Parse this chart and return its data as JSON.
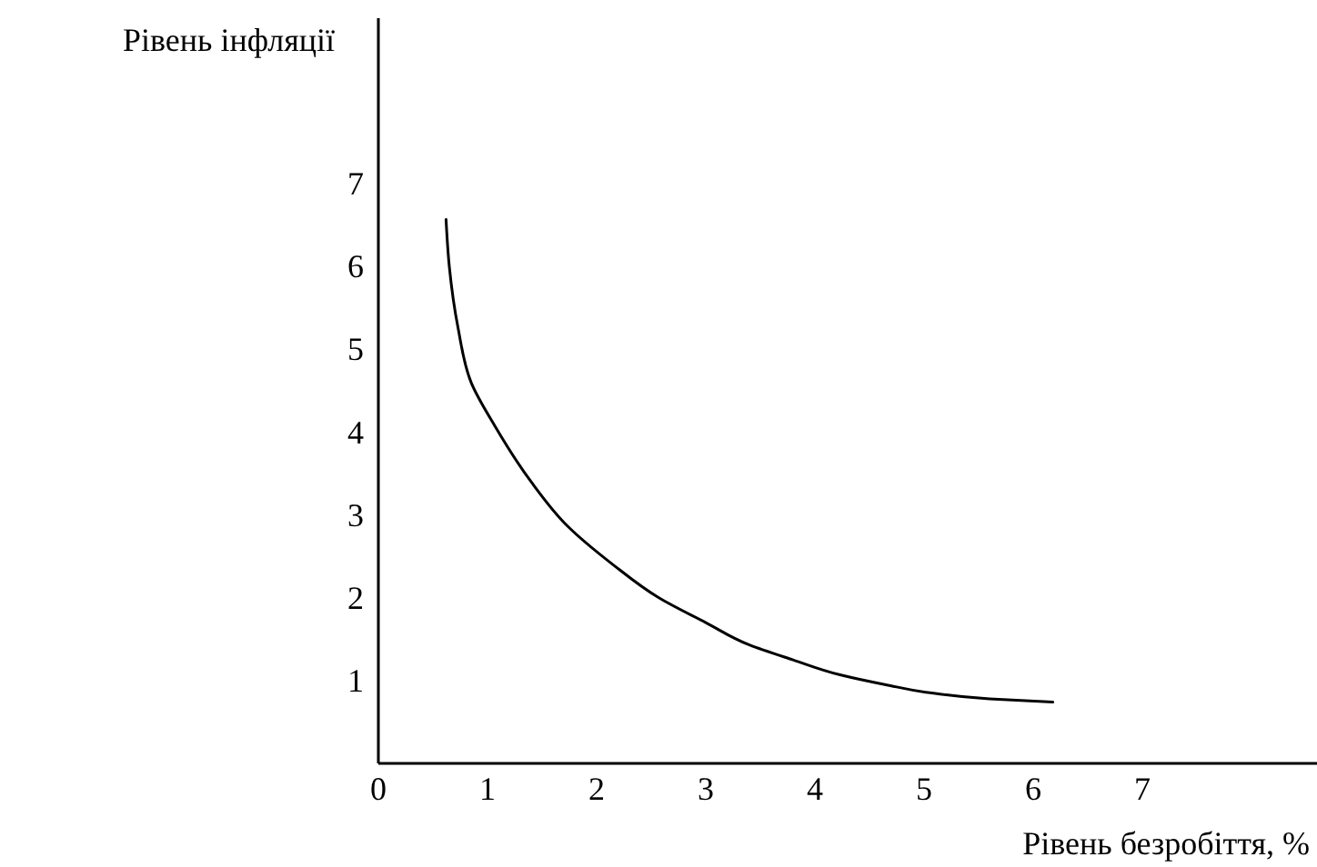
{
  "chart_data": {
    "type": "line",
    "xlabel": "Рівень безробіття, %",
    "ylabel": "Рівень інфляції",
    "x": [
      0.62,
      0.65,
      0.73,
      0.85,
      1.07,
      1.4,
      1.73,
      2.15,
      2.57,
      3.0,
      3.4,
      3.8,
      4.23,
      4.65,
      5.07,
      5.6,
      6.18
    ],
    "series": [
      {
        "color": "#000000",
        "values": [
          6.57,
          6.0,
          5.26,
          4.6,
          4.07,
          3.4,
          2.87,
          2.4,
          2.0,
          1.7,
          1.43,
          1.25,
          1.07,
          0.95,
          0.85,
          0.78,
          0.74
        ]
      }
    ],
    "xlim": [
      0,
      8.6
    ],
    "ylim": [
      0,
      9
    ],
    "xticks": [
      0,
      1,
      2,
      3,
      4,
      5,
      6,
      7
    ],
    "yticks": [
      1,
      2,
      3,
      4,
      5,
      6,
      7
    ],
    "grid": false,
    "marker": "none",
    "line_style": "solid"
  }
}
